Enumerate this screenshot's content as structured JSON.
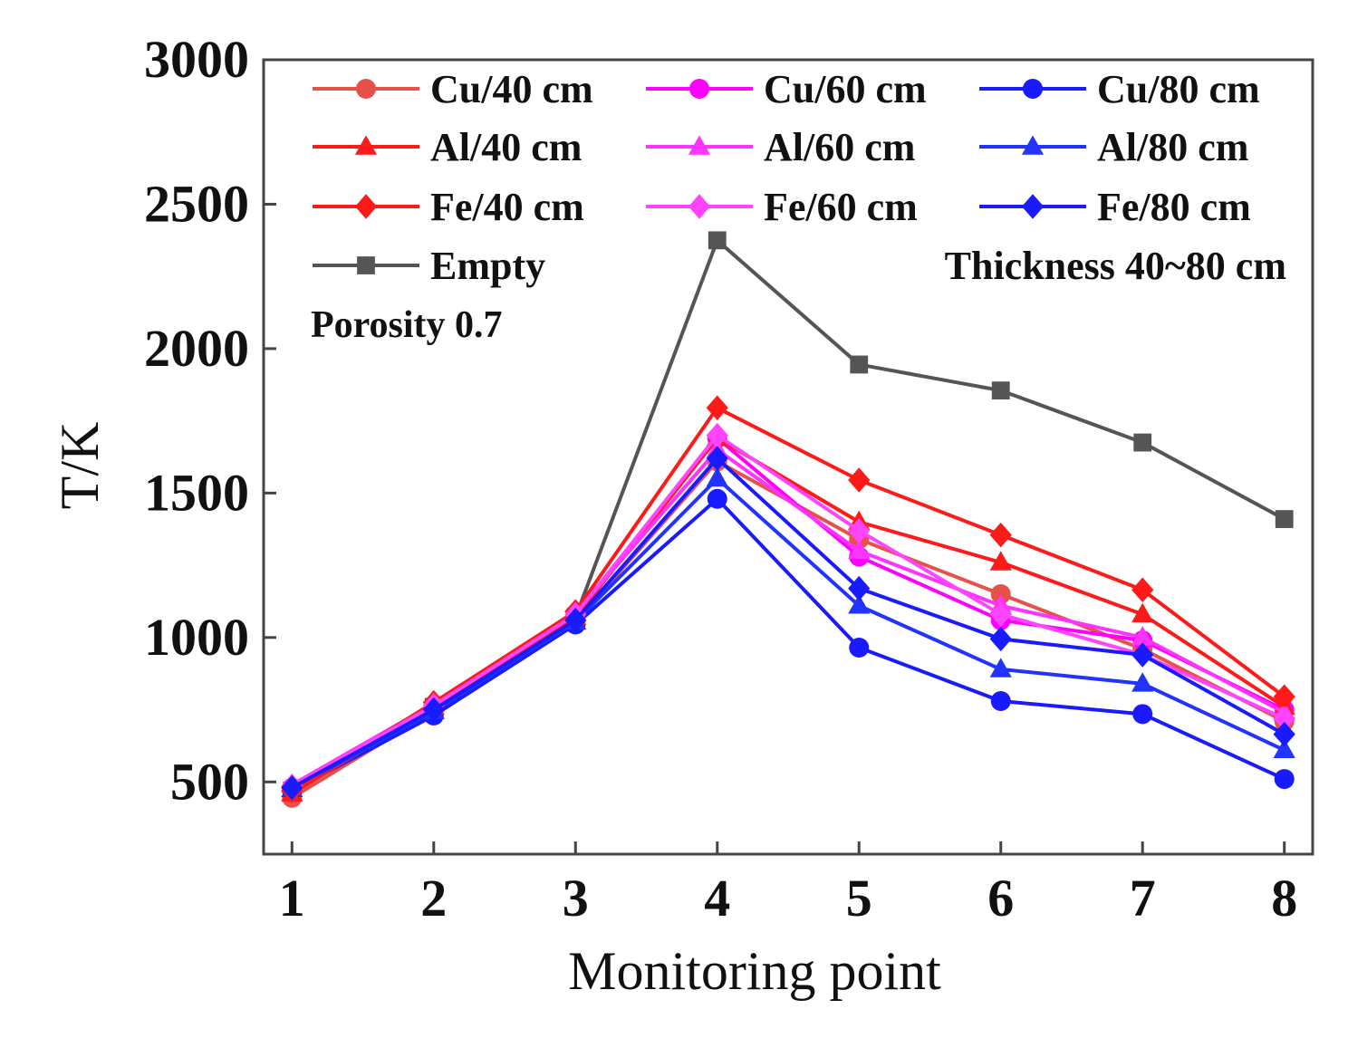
{
  "chart_data": {
    "type": "line",
    "title": "",
    "xlabel": "Monitoring point",
    "ylabel": "T/K",
    "x": [
      1,
      2,
      3,
      4,
      5,
      6,
      7,
      8
    ],
    "x_tick_labels": [
      "1",
      "2",
      "3",
      "4",
      "5",
      "6",
      "7",
      "8"
    ],
    "xlim": [
      0.8,
      8.2
    ],
    "ylim": [
      250,
      3000
    ],
    "y_ticks": [
      500,
      1000,
      1500,
      2000,
      2500,
      3000
    ],
    "y_tick_labels": [
      "500",
      "1000",
      "1500",
      "2000",
      "2500",
      "3000"
    ],
    "grid": false,
    "legend_position": "top",
    "annotations": [
      "Thickness 40~80 cm",
      "Porosity 0.7"
    ],
    "series": [
      {
        "name": "Cu/40 cm",
        "color": "#e8504a",
        "marker": "circle",
        "values": [
          445,
          745,
          1055,
          1610,
          1340,
          1150,
          960,
          710
        ]
      },
      {
        "name": "Cu/60 cm",
        "color": "#ff00ff",
        "marker": "circle",
        "values": [
          480,
          755,
          1075,
          1690,
          1280,
          1060,
          990,
          750
        ]
      },
      {
        "name": "Cu/80 cm",
        "color": "#1a1aff",
        "marker": "circle",
        "values": [
          470,
          730,
          1045,
          1480,
          965,
          780,
          735,
          510
        ]
      },
      {
        "name": "Al/40 cm",
        "color": "#ff1a1a",
        "marker": "triangle",
        "values": [
          460,
          760,
          1070,
          1690,
          1400,
          1260,
          1080,
          760
        ]
      },
      {
        "name": "Al/60 cm",
        "color": "#ff33ff",
        "marker": "triangle",
        "values": [
          490,
          770,
          1085,
          1650,
          1300,
          1110,
          1000,
          740
        ]
      },
      {
        "name": "Al/80 cm",
        "color": "#2233ff",
        "marker": "triangle",
        "values": [
          475,
          745,
          1055,
          1550,
          1110,
          890,
          840,
          610
        ]
      },
      {
        "name": "Fe/40 cm",
        "color": "#ff1a1a",
        "marker": "diamond",
        "values": [
          470,
          775,
          1090,
          1795,
          1545,
          1355,
          1165,
          795
        ]
      },
      {
        "name": "Fe/60 cm",
        "color": "#ff44ff",
        "marker": "diamond",
        "values": [
          485,
          765,
          1080,
          1700,
          1370,
          1080,
          940,
          720
        ]
      },
      {
        "name": "Fe/80 cm",
        "color": "#1a1aff",
        "marker": "diamond",
        "values": [
          480,
          750,
          1060,
          1620,
          1170,
          995,
          940,
          665
        ]
      },
      {
        "name": "Empty",
        "color": "#555555",
        "marker": "square",
        "values": [
          470,
          760,
          1070,
          2375,
          1945,
          1855,
          1675,
          1410
        ]
      }
    ]
  }
}
